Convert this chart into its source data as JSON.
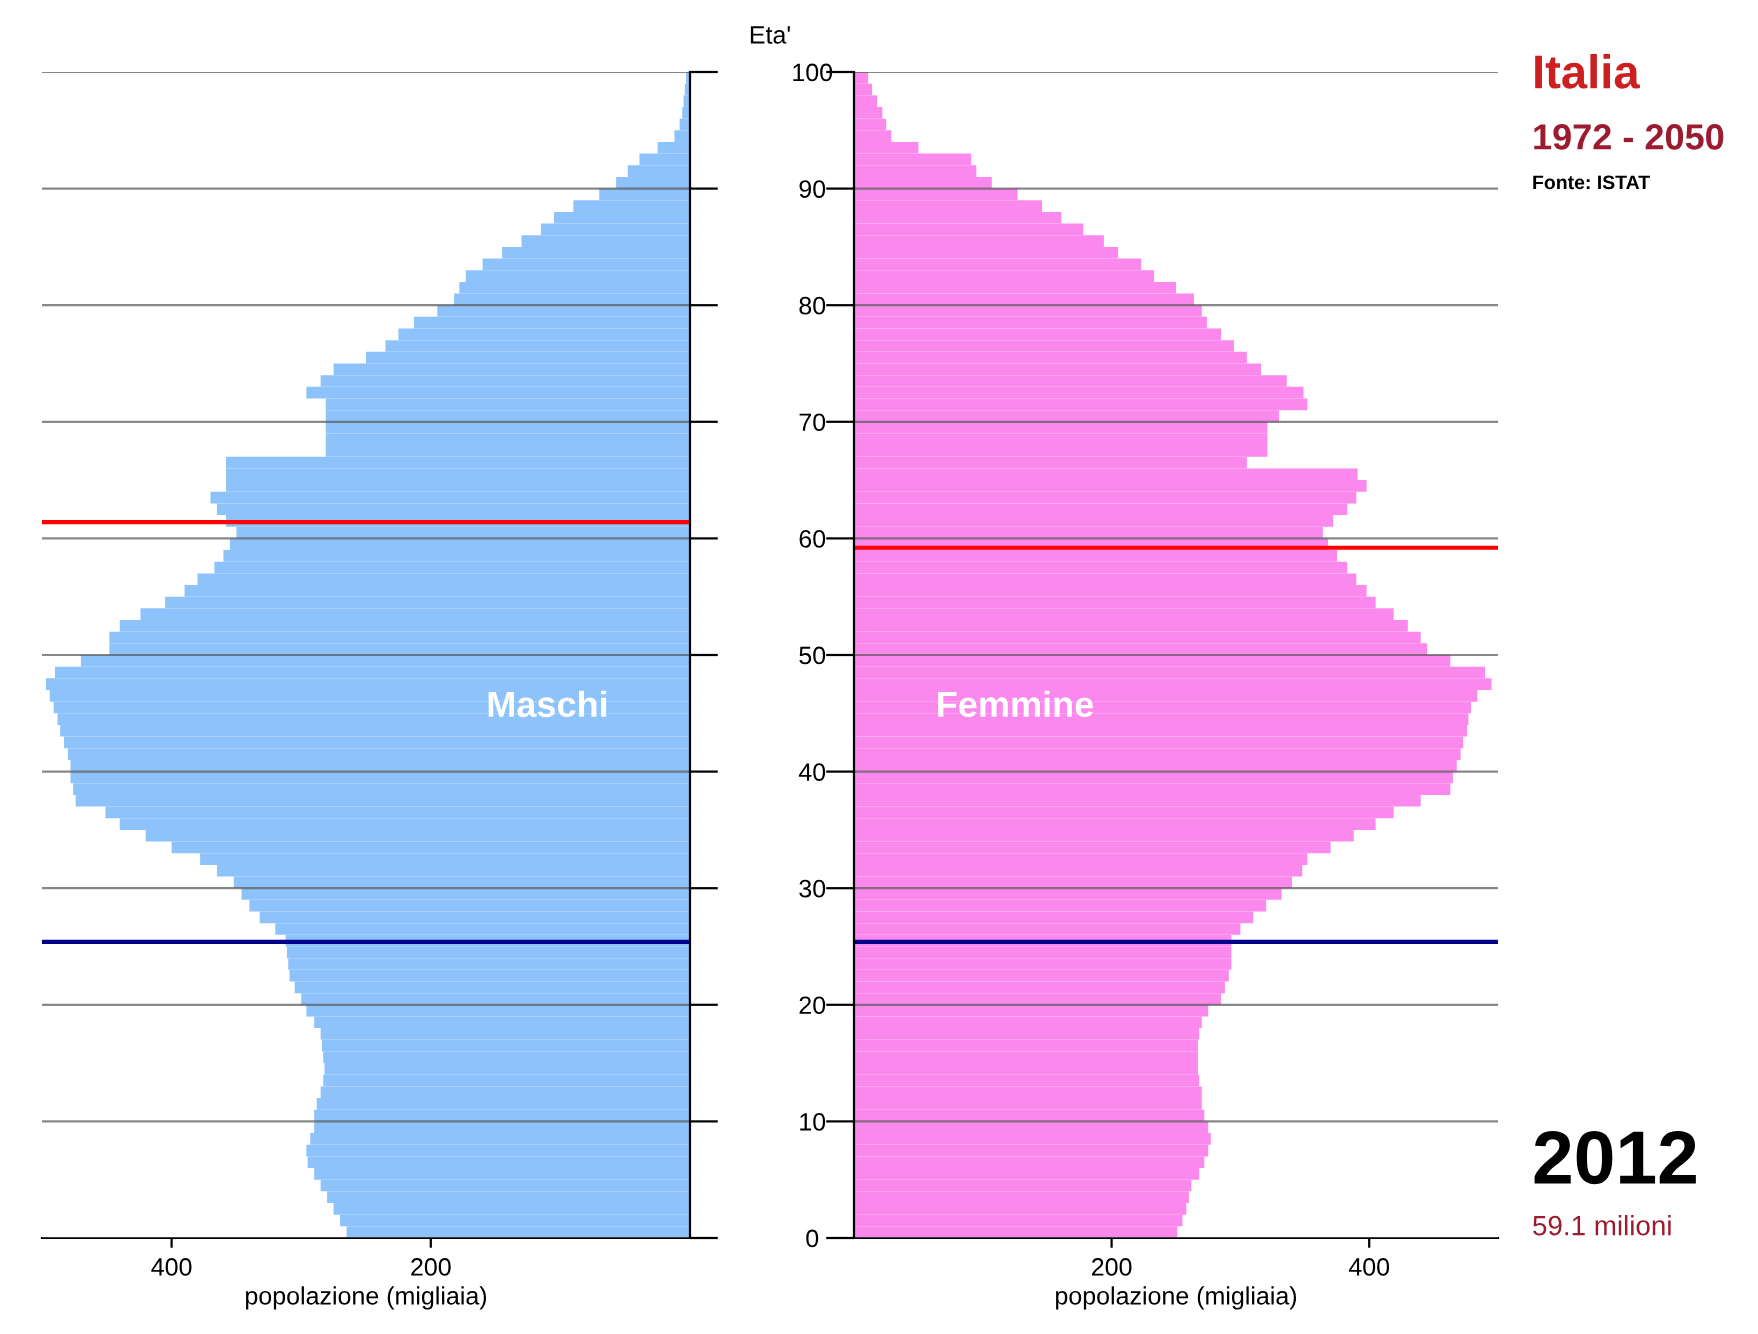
{
  "chart_data": [
    {
      "type": "bar",
      "orientation": "horizontal",
      "ylabel": "Eta'",
      "xlabel": "popolazione (migliaia)",
      "x": [
        0,
        1,
        2,
        3,
        4,
        5,
        6,
        7,
        8,
        9,
        10,
        11,
        12,
        13,
        14,
        15,
        16,
        17,
        18,
        19,
        20,
        21,
        22,
        23,
        24,
        25,
        26,
        27,
        28,
        29,
        30,
        31,
        32,
        33,
        34,
        35,
        36,
        37,
        38,
        39,
        40,
        41,
        42,
        43,
        44,
        45,
        46,
        47,
        48,
        49,
        50,
        51,
        52,
        53,
        54,
        55,
        56,
        57,
        58,
        59,
        60,
        61,
        62,
        63,
        64,
        65,
        66,
        67,
        68,
        69,
        70,
        71,
        72,
        73,
        74,
        75,
        76,
        77,
        78,
        79,
        80,
        81,
        82,
        83,
        84,
        85,
        86,
        87,
        88,
        89,
        90,
        91,
        92,
        93,
        94,
        95,
        96,
        97,
        98,
        99
      ],
      "series": [
        {
          "name": "Maschi",
          "color": "#8ec2fa",
          "values": [
            265,
            270,
            275,
            280,
            285,
            290,
            295,
            296,
            293,
            290,
            290,
            288,
            285,
            283,
            282,
            283,
            284,
            285,
            290,
            296,
            300,
            305,
            309,
            310,
            311,
            312,
            320,
            332,
            340,
            346,
            352,
            365,
            378,
            400,
            420,
            440,
            451,
            474,
            476,
            478,
            478,
            480,
            483,
            486,
            488,
            491,
            494,
            497,
            490,
            470,
            448,
            448,
            440,
            424,
            405,
            390,
            380,
            367,
            360,
            355,
            350,
            358,
            365,
            370,
            358,
            358,
            358,
            281,
            281,
            281,
            281,
            281,
            296,
            285,
            275,
            250,
            235,
            225,
            213,
            195,
            182,
            178,
            173,
            160,
            145,
            130,
            115,
            105,
            90,
            70,
            57,
            48,
            39,
            25,
            12,
            8,
            6,
            5,
            4,
            3
          ]
        }
      ],
      "xlim": [
        500,
        0
      ],
      "xticks": [
        400,
        200
      ],
      "ylim": [
        0,
        100
      ],
      "yticks": [
        0,
        10,
        20,
        30,
        40,
        50,
        60,
        70,
        80,
        90,
        100
      ],
      "grid": "y",
      "ref_lines": [
        {
          "axis": "y",
          "value": 61.4,
          "color": "#ff0000"
        },
        {
          "axis": "y",
          "value": 25.4,
          "color": "#00008b"
        }
      ]
    },
    {
      "type": "bar",
      "orientation": "horizontal",
      "xlabel": "popolazione (migliaia)",
      "annotations": [
        "Italia",
        "1972 - 2050",
        "Fonte: ISTAT",
        "2012",
        "59.1 milioni"
      ],
      "x": [
        0,
        1,
        2,
        3,
        4,
        5,
        6,
        7,
        8,
        9,
        10,
        11,
        12,
        13,
        14,
        15,
        16,
        17,
        18,
        19,
        20,
        21,
        22,
        23,
        24,
        25,
        26,
        27,
        28,
        29,
        30,
        31,
        32,
        33,
        34,
        35,
        36,
        37,
        38,
        39,
        40,
        41,
        42,
        43,
        44,
        45,
        46,
        47,
        48,
        49,
        50,
        51,
        52,
        53,
        54,
        55,
        56,
        57,
        58,
        59,
        60,
        61,
        62,
        63,
        64,
        65,
        66,
        67,
        68,
        69,
        70,
        71,
        72,
        73,
        74,
        75,
        76,
        77,
        78,
        79,
        80,
        81,
        82,
        83,
        84,
        85,
        86,
        87,
        88,
        89,
        90,
        91,
        92,
        93,
        94,
        95,
        96,
        97,
        98,
        99
      ],
      "series": [
        {
          "name": "Femmine",
          "color": "#fb88ec",
          "values": [
            251,
            255,
            258,
            260,
            262,
            268,
            272,
            275,
            277,
            275,
            272,
            270,
            270,
            268,
            267,
            267,
            267,
            268,
            270,
            275,
            285,
            288,
            291,
            293,
            293,
            293,
            300,
            310,
            320,
            332,
            340,
            348,
            352,
            370,
            388,
            405,
            419,
            440,
            463,
            465,
            468,
            471,
            473,
            476,
            477,
            479,
            484,
            495,
            490,
            463,
            445,
            440,
            430,
            419,
            405,
            398,
            390,
            383,
            375,
            368,
            364,
            372,
            383,
            390,
            398,
            391,
            305,
            321,
            321,
            321,
            330,
            352,
            349,
            336,
            316,
            305,
            295,
            285,
            274,
            270,
            264,
            250,
            233,
            223,
            205,
            194,
            178,
            161,
            146,
            127,
            107,
            95,
            91,
            50,
            29,
            25,
            22,
            18,
            14,
            11
          ]
        }
      ],
      "xlim": [
        0,
        500
      ],
      "xticks": [
        200,
        400
      ],
      "ylim": [
        0,
        100
      ],
      "yticks": [
        0,
        10,
        20,
        30,
        40,
        50,
        60,
        70,
        80,
        90,
        100
      ],
      "grid": "y",
      "tick_labels": "x",
      "ref_lines": [
        {
          "axis": "y",
          "value": 59.2,
          "color": "#ff0000"
        },
        {
          "axis": "y",
          "value": 25.4,
          "color": "#00008b"
        }
      ]
    }
  ]
}
